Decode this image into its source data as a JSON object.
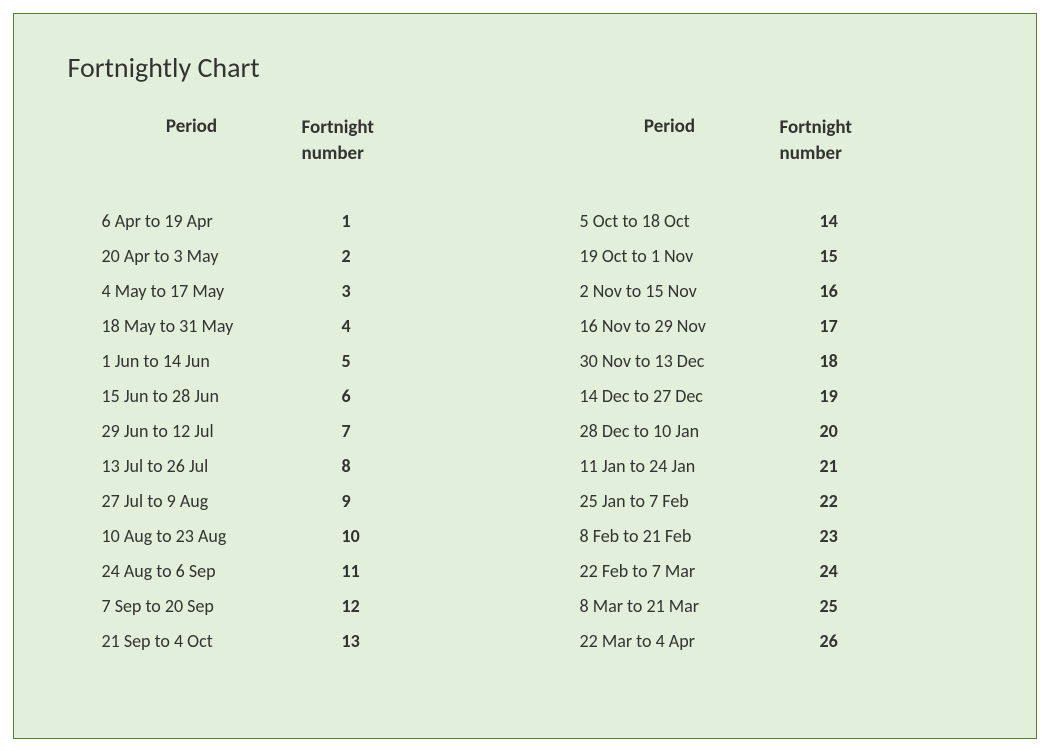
{
  "title": "Fortnightly Chart",
  "headers": {
    "period": "Period",
    "fortnight_line1": "Fortnight",
    "fortnight_line2": "number"
  },
  "left_column": [
    {
      "period": "6 Apr to 19 Apr",
      "number": "1"
    },
    {
      "period": "20 Apr to 3 May",
      "number": "2"
    },
    {
      "period": "4 May to 17 May",
      "number": "3"
    },
    {
      "period": "18 May to 31 May",
      "number": "4"
    },
    {
      "period": "1 Jun to 14 Jun",
      "number": "5"
    },
    {
      "period": "15 Jun to 28 Jun",
      "number": "6"
    },
    {
      "period": "29 Jun to 12 Jul",
      "number": "7"
    },
    {
      "period": "13 Jul to 26 Jul",
      "number": "8"
    },
    {
      "period": "27 Jul to 9 Aug",
      "number": "9"
    },
    {
      "period": "10 Aug to 23 Aug",
      "number": "10"
    },
    {
      "period": "24 Aug to 6 Sep",
      "number": "11"
    },
    {
      "period": "7 Sep to 20 Sep",
      "number": "12"
    },
    {
      "period": "21 Sep to 4 Oct",
      "number": "13"
    }
  ],
  "right_column": [
    {
      "period": "5 Oct to 18 Oct",
      "number": "14"
    },
    {
      "period": "19 Oct to 1 Nov",
      "number": "15"
    },
    {
      "period": "2 Nov to 15 Nov",
      "number": "16"
    },
    {
      "period": "16 Nov to 29 Nov",
      "number": "17"
    },
    {
      "period": "30 Nov to 13 Dec",
      "number": "18"
    },
    {
      "period": "14 Dec to 27 Dec",
      "number": "19"
    },
    {
      "period": "28 Dec to 10 Jan",
      "number": "20"
    },
    {
      "period": "11 Jan to 24 Jan",
      "number": "21"
    },
    {
      "period": "25 Jan to 7 Feb",
      "number": "22"
    },
    {
      "period": "8 Feb to 21 Feb",
      "number": "23"
    },
    {
      "period": "22 Feb to 7 Mar",
      "number": "24"
    },
    {
      "period": "8 Mar to 21 Mar",
      "number": "25"
    },
    {
      "period": "22 Mar to 4 Apr",
      "number": "26"
    }
  ],
  "style": {
    "background_color": "#e2efda",
    "border_color": "#548235",
    "text_color": "#333333",
    "title_fontsize": 28,
    "header_fontsize": 19,
    "cell_fontsize": 18,
    "container_width": 1024,
    "container_height": 726,
    "type": "table"
  }
}
